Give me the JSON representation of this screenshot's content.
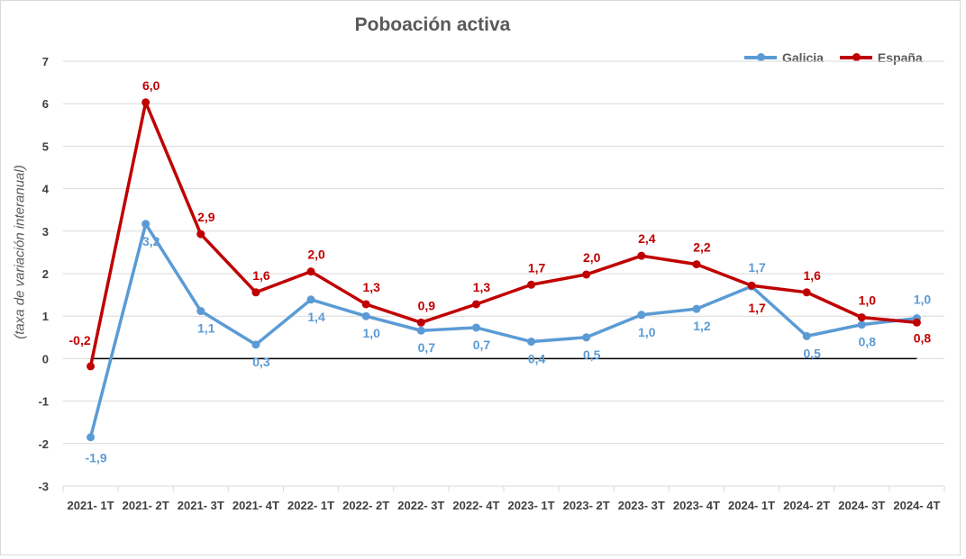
{
  "chart_data": {
    "type": "line",
    "title": "Poboación activa",
    "ylabel": "(taxa de variación interanual)",
    "xlabel": "",
    "ylim": [
      -3,
      7
    ],
    "yticks": [
      "-3",
      "-2",
      "-1",
      "0",
      "1",
      "2",
      "3",
      "4",
      "5",
      "6",
      "7"
    ],
    "grid": "horizontal",
    "legend_position": "top-right",
    "categories": [
      "2021- 1T",
      "2021- 2T",
      "2021- 3T",
      "2021- 4T",
      "2022- 1T",
      "2022- 2T",
      "2022- 3T",
      "2022- 4T",
      "2023- 1T",
      "2023- 2T",
      "2023- 3T",
      "2023- 4T",
      "2024- 1T",
      "2024- 2T",
      "2024- 3T",
      "2024- 4T"
    ],
    "series": [
      {
        "name": "Galicia",
        "color": "#5b9bd5",
        "values": [
          -1.85,
          3.17,
          1.12,
          0.33,
          1.39,
          1.0,
          0.66,
          0.73,
          0.4,
          0.5,
          1.03,
          1.17,
          1.7,
          0.53,
          0.8,
          0.95
        ],
        "labels": [
          "-1,9",
          "3,2",
          "1,1",
          "0,3",
          "1,4",
          "1,0",
          "0,7",
          "0,7",
          "0,4",
          "0,5",
          "1,0",
          "1,2",
          "1,7",
          "0,5",
          "0,8",
          "1,0"
        ]
      },
      {
        "name": "España",
        "color": "#c00000",
        "values": [
          -0.18,
          6.03,
          2.93,
          1.56,
          2.05,
          1.28,
          0.85,
          1.28,
          1.74,
          1.98,
          2.42,
          2.22,
          1.72,
          1.56,
          0.97,
          0.85
        ],
        "labels": [
          "-0,2",
          "6,0",
          "2,9",
          "1,6",
          "2,0",
          "1,3",
          "0,9",
          "1,3",
          "1,7",
          "2,0",
          "2,4",
          "2,2",
          "1,7",
          "1,6",
          "1,0",
          "0,8"
        ]
      }
    ]
  }
}
